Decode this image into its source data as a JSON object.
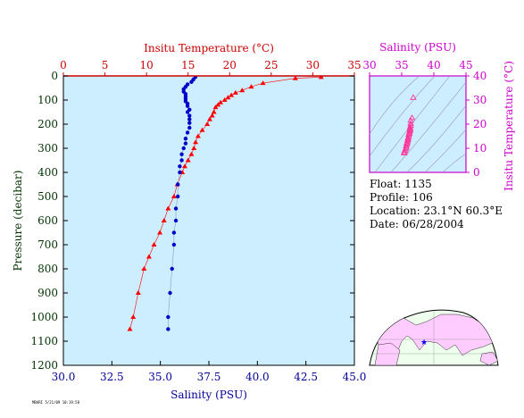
{
  "chart_data": [
    {
      "type": "scatter",
      "x_top_axis": {
        "label": "Insitu Temperature (°C)",
        "range": [
          0,
          35
        ],
        "ticks": [
          "0",
          "5",
          "10",
          "15",
          "20",
          "25",
          "30",
          "35"
        ],
        "color": "#cc0000"
      },
      "x_bottom_axis": {
        "label": "Salinity (PSU)",
        "range": [
          30.0,
          45.0
        ],
        "ticks": [
          "30.0",
          "32.5",
          "35.0",
          "37.5",
          "40.0",
          "42.5",
          "45.0"
        ],
        "color": "#000099"
      },
      "y_axis": {
        "label": "Pressure (decibar)",
        "range": [
          0,
          1200
        ],
        "inverted": true,
        "ticks": [
          "0",
          "100",
          "200",
          "300",
          "400",
          "500",
          "600",
          "700",
          "800",
          "900",
          "1000",
          "1100",
          "1200"
        ],
        "color": "#003300"
      },
      "background": "#cceeff",
      "series": [
        {
          "axis": "temperature",
          "marker": "triangle",
          "color": "#ff0000",
          "points": [
            {
              "t": 31.0,
              "p": 5
            },
            {
              "t": 27.9,
              "p": 10
            },
            {
              "t": 24.0,
              "p": 30
            },
            {
              "t": 22.6,
              "p": 45
            },
            {
              "t": 21.5,
              "p": 60
            },
            {
              "t": 20.7,
              "p": 70
            },
            {
              "t": 20.2,
              "p": 80
            },
            {
              "t": 19.8,
              "p": 90
            },
            {
              "t": 19.4,
              "p": 100
            },
            {
              "t": 18.9,
              "p": 110
            },
            {
              "t": 18.6,
              "p": 120
            },
            {
              "t": 18.3,
              "p": 130
            },
            {
              "t": 18.1,
              "p": 150
            },
            {
              "t": 17.9,
              "p": 165
            },
            {
              "t": 17.6,
              "p": 180
            },
            {
              "t": 17.3,
              "p": 200
            },
            {
              "t": 16.7,
              "p": 225
            },
            {
              "t": 16.2,
              "p": 250
            },
            {
              "t": 15.9,
              "p": 275
            },
            {
              "t": 15.7,
              "p": 300
            },
            {
              "t": 15.4,
              "p": 325
            },
            {
              "t": 15.0,
              "p": 350
            },
            {
              "t": 14.6,
              "p": 375
            },
            {
              "t": 14.3,
              "p": 400
            },
            {
              "t": 13.7,
              "p": 450
            },
            {
              "t": 13.3,
              "p": 500
            },
            {
              "t": 12.6,
              "p": 550
            },
            {
              "t": 12.1,
              "p": 600
            },
            {
              "t": 11.6,
              "p": 650
            },
            {
              "t": 10.9,
              "p": 700
            },
            {
              "t": 10.3,
              "p": 750
            },
            {
              "t": 9.7,
              "p": 800
            },
            {
              "t": 9.0,
              "p": 900
            },
            {
              "t": 8.4,
              "p": 1000
            },
            {
              "t": 8.0,
              "p": 1050
            }
          ]
        },
        {
          "axis": "salinity",
          "marker": "circle",
          "color": "#0000cc",
          "points": [
            {
              "s": 36.8,
              "p": 5
            },
            {
              "s": 36.7,
              "p": 15
            },
            {
              "s": 36.6,
              "p": 25
            },
            {
              "s": 36.4,
              "p": 35
            },
            {
              "s": 36.3,
              "p": 45
            },
            {
              "s": 36.2,
              "p": 55
            },
            {
              "s": 36.2,
              "p": 65
            },
            {
              "s": 36.3,
              "p": 75
            },
            {
              "s": 36.3,
              "p": 85
            },
            {
              "s": 36.3,
              "p": 95
            },
            {
              "s": 36.3,
              "p": 105
            },
            {
              "s": 36.4,
              "p": 115
            },
            {
              "s": 36.4,
              "p": 125
            },
            {
              "s": 36.5,
              "p": 140
            },
            {
              "s": 36.4,
              "p": 150
            },
            {
              "s": 36.5,
              "p": 165
            },
            {
              "s": 36.5,
              "p": 180
            },
            {
              "s": 36.5,
              "p": 195
            },
            {
              "s": 36.5,
              "p": 215
            },
            {
              "s": 36.4,
              "p": 235
            },
            {
              "s": 36.3,
              "p": 260
            },
            {
              "s": 36.3,
              "p": 280
            },
            {
              "s": 36.2,
              "p": 300
            },
            {
              "s": 36.1,
              "p": 325
            },
            {
              "s": 36.1,
              "p": 350
            },
            {
              "s": 36.0,
              "p": 375
            },
            {
              "s": 36.0,
              "p": 400
            },
            {
              "s": 35.9,
              "p": 450
            },
            {
              "s": 35.9,
              "p": 500
            },
            {
              "s": 35.8,
              "p": 550
            },
            {
              "s": 35.8,
              "p": 600
            },
            {
              "s": 35.7,
              "p": 650
            },
            {
              "s": 35.7,
              "p": 700
            },
            {
              "s": 35.6,
              "p": 800
            },
            {
              "s": 35.5,
              "p": 900
            },
            {
              "s": 35.4,
              "p": 1000
            },
            {
              "s": 35.4,
              "p": 1050
            }
          ]
        }
      ]
    },
    {
      "type": "scatter",
      "x_axis": {
        "label": "Salinity (PSU)",
        "range": [
          30,
          45
        ],
        "ticks": [
          "30",
          "35",
          "40",
          "45"
        ],
        "color": "#cc00cc"
      },
      "y_axis": {
        "label": "Insitu Temperature (°C)",
        "range": [
          0,
          40
        ],
        "ticks": [
          "0",
          "10",
          "20",
          "30",
          "40"
        ],
        "color": "#cc00cc"
      },
      "background": "#cceeff",
      "marker": "triangle-open",
      "color": "#ff3399",
      "points": [
        {
          "s": 36.8,
          "t": 31.0
        },
        {
          "s": 36.6,
          "t": 22.6
        },
        {
          "s": 36.4,
          "t": 21.5
        },
        {
          "s": 36.4,
          "t": 20.2
        },
        {
          "s": 36.4,
          "t": 19.4
        },
        {
          "s": 36.3,
          "t": 18.6
        },
        {
          "s": 36.3,
          "t": 18.1
        },
        {
          "s": 36.3,
          "t": 17.6
        },
        {
          "s": 36.3,
          "t": 17.3
        },
        {
          "s": 36.2,
          "t": 16.7
        },
        {
          "s": 36.2,
          "t": 16.2
        },
        {
          "s": 36.1,
          "t": 15.7
        },
        {
          "s": 36.1,
          "t": 15.0
        },
        {
          "s": 36.0,
          "t": 14.3
        },
        {
          "s": 36.0,
          "t": 13.7
        },
        {
          "s": 35.9,
          "t": 13.3
        },
        {
          "s": 35.9,
          "t": 12.6
        },
        {
          "s": 35.8,
          "t": 12.1
        },
        {
          "s": 35.8,
          "t": 11.6
        },
        {
          "s": 35.7,
          "t": 10.9
        },
        {
          "s": 35.7,
          "t": 10.3
        },
        {
          "s": 35.6,
          "t": 9.7
        },
        {
          "s": 35.5,
          "t": 9.0
        },
        {
          "s": 35.4,
          "t": 8.4
        },
        {
          "s": 35.4,
          "t": 8.0
        }
      ]
    }
  ],
  "info": {
    "float": "Float:  1135",
    "profile": "Profile:  106",
    "location": "Location:  23.1°N  60.3°E",
    "date": "Date:  06/28/2004"
  },
  "map": {
    "land_color": "#ffccff",
    "ocean_color": "#eeffee",
    "marker": "star",
    "marker_color": "#0000ff",
    "float_position": {
      "lat": 23.1,
      "lon": 60.3
    }
  },
  "stamp": "MBARI 5/21/09 10:19:58"
}
